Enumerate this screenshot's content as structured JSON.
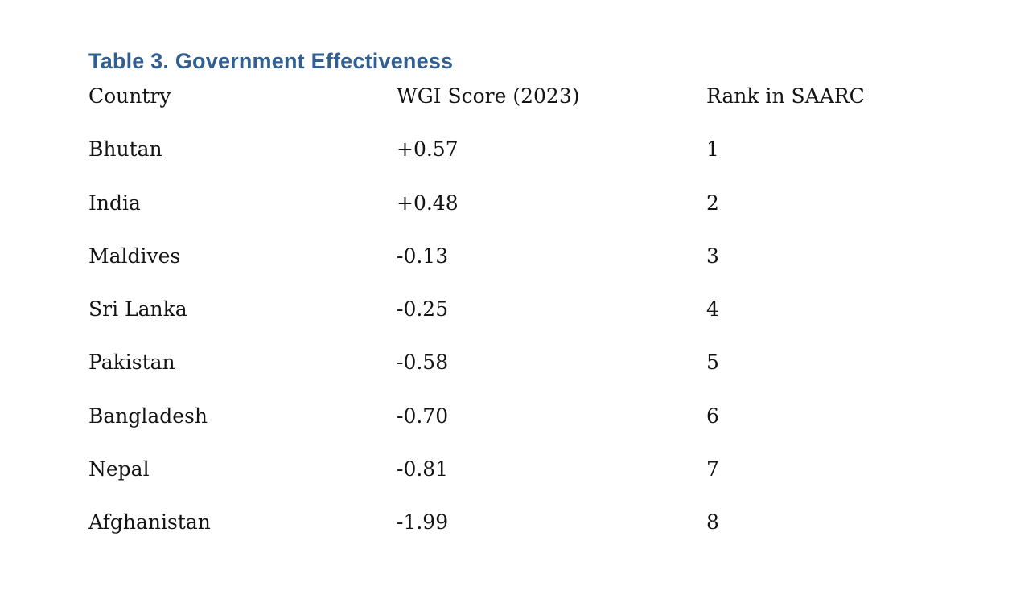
{
  "document": {
    "title": "Table 3. Government Effectiveness",
    "title_color": "#315f91",
    "text_color": "#141414",
    "background_color": "#ffffff",
    "table": {
      "headers": [
        "Country",
        "WGI Score (2023)",
        "Rank in SAARC"
      ],
      "rows": [
        [
          "Bhutan",
          "+0.57",
          "1"
        ],
        [
          "India",
          "+0.48",
          "2"
        ],
        [
          "Maldives",
          "-0.13",
          "3"
        ],
        [
          "Sri Lanka",
          "-0.25",
          "4"
        ],
        [
          "Pakistan",
          "-0.58",
          "5"
        ],
        [
          "Bangladesh",
          "-0.70",
          "6"
        ],
        [
          "Nepal",
          "-0.81",
          "7"
        ],
        [
          "Afghanistan",
          "-1.99",
          "8"
        ]
      ]
    }
  }
}
